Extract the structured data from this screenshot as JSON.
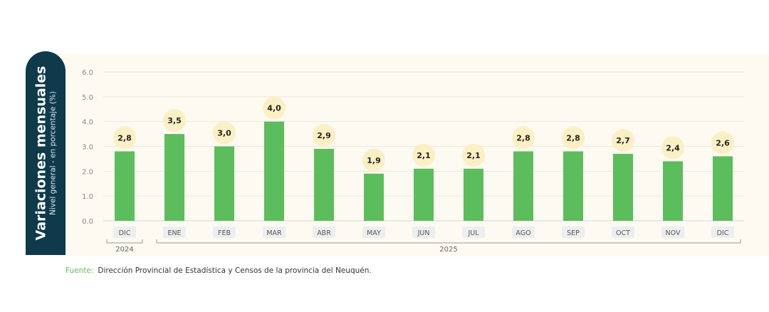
{
  "title": "Variaciones mensuales",
  "subtitle": "Nivel general - en porcentaje (%)",
  "source": {
    "label": "Fuente:",
    "text": "Dirección Provincial de Estadística y Censos de la provincia del Neuquén."
  },
  "colors": {
    "bar": "#5cbd5c",
    "label_bubble": "#fbefc4",
    "title_bg": "#0e3a4c",
    "panel": "#fdfaf2"
  },
  "chart_data": {
    "type": "bar",
    "title": "Variaciones mensuales",
    "ylabel": "Nivel general - en porcentaje (%)",
    "categories": [
      "DIC",
      "ENE",
      "FEB",
      "MAR",
      "ABR",
      "MAY",
      "JUN",
      "JUL",
      "AGO",
      "SEP",
      "OCT",
      "NOV",
      "DIC"
    ],
    "values": [
      2.8,
      3.5,
      3.0,
      4.0,
      2.9,
      1.9,
      2.1,
      2.1,
      2.8,
      2.8,
      2.7,
      2.4,
      2.6
    ],
    "data_labels": [
      "2,8",
      "3,5",
      "3,0",
      "4,0",
      "2,9",
      "1,9",
      "2,1",
      "2,1",
      "2,8",
      "2,8",
      "2,7",
      "2,4",
      "2,6"
    ],
    "year_groups": [
      {
        "label": "2024",
        "from": 0,
        "to": 0
      },
      {
        "label": "2025",
        "from": 1,
        "to": 12
      }
    ],
    "ylim": [
      0,
      6
    ],
    "yticks": [
      "0.0",
      "1.0",
      "2.0",
      "3.0",
      "4.0",
      "5.0",
      "6.0"
    ],
    "grid": true
  }
}
